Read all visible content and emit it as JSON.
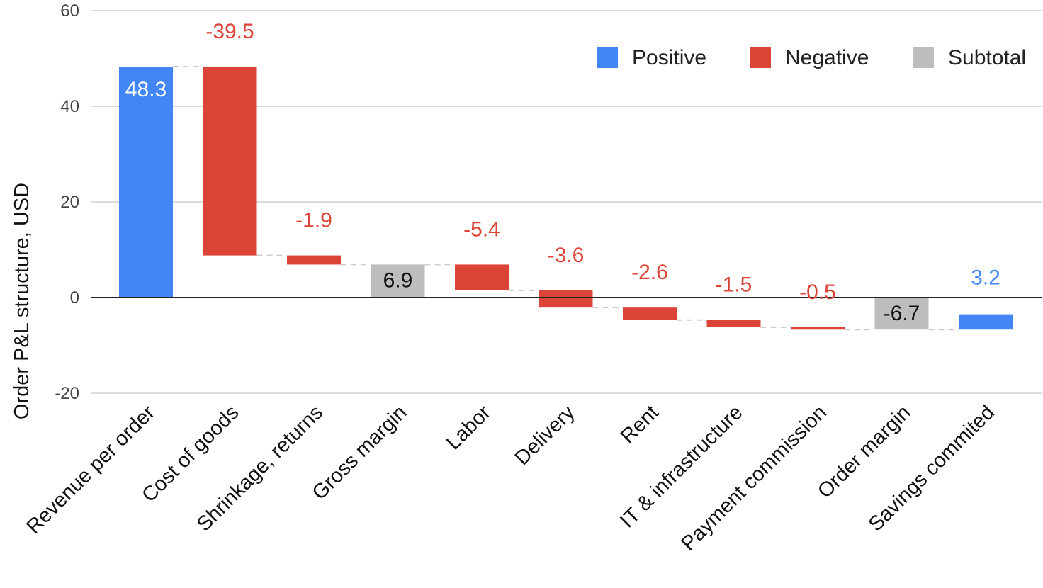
{
  "chart_data": {
    "type": "bar",
    "subtype": "waterfall",
    "ylabel": "Order P&L structure, USD",
    "ylim": [
      -20,
      60
    ],
    "yticks": [
      "60",
      "40",
      "20",
      "0",
      "-20"
    ],
    "grid": true,
    "legend_position": "top-right",
    "legend": [
      {
        "label": "Positive",
        "color": "#4285f4"
      },
      {
        "label": "Negative",
        "color": "#db4437"
      },
      {
        "label": "Subtotal",
        "color": "#bdbdbd"
      }
    ],
    "categories": [
      "Revenue per order",
      "Cost of goods",
      "Shrinkage, returns",
      "Gross margin",
      "Labor",
      "Delivery",
      "Rent",
      "IT & infrastructure",
      "Payment commission",
      "Order margin",
      "Savings commited"
    ],
    "bars": [
      {
        "kind": "positive",
        "start": 0,
        "end": 48.3,
        "label": "48.3"
      },
      {
        "kind": "negative",
        "start": 48.3,
        "end": 8.8,
        "label": "-39.5"
      },
      {
        "kind": "negative",
        "start": 8.8,
        "end": 6.9,
        "label": "-1.9"
      },
      {
        "kind": "subtotal",
        "start": 0,
        "end": 6.9,
        "label": "6.9"
      },
      {
        "kind": "negative",
        "start": 6.9,
        "end": 1.5,
        "label": "-5.4"
      },
      {
        "kind": "negative",
        "start": 1.5,
        "end": -2.1,
        "label": "-3.6"
      },
      {
        "kind": "negative",
        "start": -2.1,
        "end": -4.7,
        "label": "-2.6"
      },
      {
        "kind": "negative",
        "start": -4.7,
        "end": -6.2,
        "label": "-1.5"
      },
      {
        "kind": "negative",
        "start": -6.2,
        "end": -6.7,
        "label": "-0.5"
      },
      {
        "kind": "subtotal",
        "start": 0,
        "end": -6.7,
        "label": "-6.7"
      },
      {
        "kind": "positive",
        "start": -6.7,
        "end": -3.5,
        "label": "3.2"
      }
    ],
    "colors": {
      "positive": "#4285f4",
      "negative": "#db4437",
      "subtotal": "#bdbdbd"
    }
  }
}
